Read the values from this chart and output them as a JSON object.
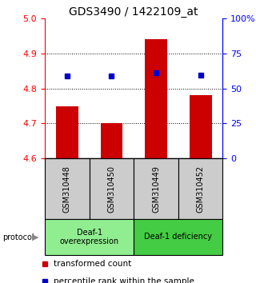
{
  "title": "GDS3490 / 1422109_at",
  "samples": [
    "GSM310448",
    "GSM310450",
    "GSM310449",
    "GSM310452"
  ],
  "bar_values": [
    4.75,
    4.7,
    4.94,
    4.78
  ],
  "dot_values": [
    4.835,
    4.835,
    4.845,
    4.837
  ],
  "bar_bottom": 4.6,
  "ylim_left": [
    4.6,
    5.0
  ],
  "ylim_right": [
    0,
    100
  ],
  "yticks_left": [
    4.6,
    4.7,
    4.8,
    4.9,
    5.0
  ],
  "yticks_right": [
    0,
    25,
    50,
    75,
    100
  ],
  "ytick_labels_right": [
    "0",
    "25",
    "50",
    "75",
    "100%"
  ],
  "bar_color": "#cc0000",
  "dot_color": "#0000cc",
  "groups": [
    {
      "label": "Deaf-1\noverexpression",
      "samples": [
        0,
        1
      ],
      "color": "#90ee90"
    },
    {
      "label": "Deaf-1 deficiency",
      "samples": [
        2,
        3
      ],
      "color": "#44cc44"
    }
  ],
  "protocol_label": "protocol",
  "legend_bar_label": "transformed count",
  "legend_dot_label": "percentile rank within the sample",
  "sample_box_color": "#cccccc",
  "dotted_yticks": [
    4.7,
    4.8,
    4.9
  ],
  "bar_width": 0.5
}
